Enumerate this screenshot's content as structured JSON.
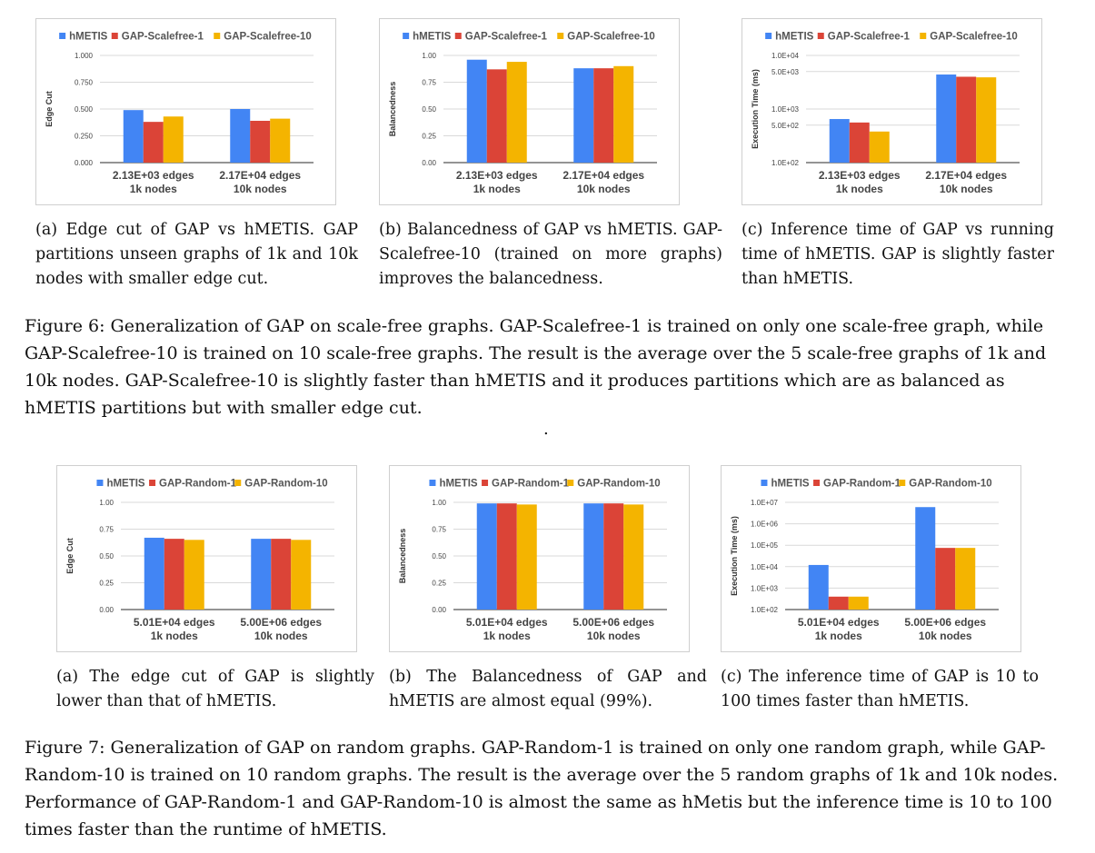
{
  "figure6": {
    "caption": "Figure 6: Generalization of GAP on scale-free graphs. GAP-Scalefree-1 is trained on only one scale-free graph, while GAP-Scalefree-10 is trained on 10 scale-free graphs. The result is the average over the 5 scale-free graphs of 1k and 10k nodes. GAP-Scalefree-10 is slightly faster than hMETIS and it produces partitions which are as balanced as hMETIS partitions but with smaller edge cut.",
    "subcaptions": [
      "(a) Edge cut of GAP vs hMETIS. GAP partitions unseen graphs of 1k and 10k nodes with smaller edge cut.",
      "(b) Balancedness of GAP vs hMETIS. GAP-Scalefree-10 (trained on more graphs) improves the balancedness.",
      "(c) Inference time of GAP vs running time of hMETIS. GAP is slightly faster than hMETIS."
    ]
  },
  "separator": ".",
  "figure7": {
    "caption": "Figure 7: Generalization of GAP on random graphs. GAP-Random-1 is trained on only one random graph, while GAP-Random-10 is trained on 10 random graphs. The result is the average over the 5 random graphs of 1k and 10k nodes. Performance of GAP-Random-1 and GAP-Random-10 is almost the same as hMetis but the inference time is 10 to 100 times faster than the runtime of hMETIS.",
    "subcaptions": [
      "(a) The edge cut of GAP is slightly lower than that of hMETIS.",
      "(b) The Balancedness of GAP and hMETIS are almost equal (99%).",
      "(c) The inference time of GAP is 10 to 100 times faster than hMETIS."
    ]
  },
  "colors": {
    "s0": "#4285f4",
    "s1": "#db4437",
    "s2": "#f4b400",
    "grid": "#d9d9d9",
    "axis": "#555555",
    "text": "#444444"
  },
  "chart_data": [
    {
      "id": "6a",
      "type": "bar",
      "ylabel": "Edge Cut",
      "scale": "linear",
      "ylim": [
        0,
        1
      ],
      "ticks": [
        0,
        0.25,
        0.5,
        0.75,
        1
      ],
      "tick_labels": [
        "0.000",
        "0.250",
        "0.500",
        "0.750",
        "1.000"
      ],
      "categories": [
        [
          "2.13E+03 edges",
          "1k nodes"
        ],
        [
          "2.17E+04 edges",
          "10k nodes"
        ]
      ],
      "series": [
        {
          "name": "hMETIS",
          "values": [
            0.49,
            0.5
          ]
        },
        {
          "name": "GAP-Scalefree-1",
          "values": [
            0.38,
            0.39
          ]
        },
        {
          "name": "GAP-Scalefree-10",
          "values": [
            0.43,
            0.41
          ]
        }
      ]
    },
    {
      "id": "6b",
      "type": "bar",
      "ylabel": "Balancedness",
      "scale": "linear",
      "ylim": [
        0,
        1
      ],
      "ticks": [
        0,
        0.25,
        0.5,
        0.75,
        1
      ],
      "tick_labels": [
        "0.00",
        "0.25",
        "0.50",
        "0.75",
        "1.00"
      ],
      "categories": [
        [
          "2.13E+03 edges",
          "1k nodes"
        ],
        [
          "2.17E+04 edges",
          "10k nodes"
        ]
      ],
      "series": [
        {
          "name": "hMETIS",
          "values": [
            0.96,
            0.88
          ]
        },
        {
          "name": "GAP-Scalefree-1",
          "values": [
            0.87,
            0.88
          ]
        },
        {
          "name": "GAP-Scalefree-10",
          "values": [
            0.94,
            0.9
          ]
        }
      ]
    },
    {
      "id": "6c",
      "type": "bar",
      "ylabel": "Execution Time (ms)",
      "scale": "log",
      "ylim": [
        100,
        10000
      ],
      "ticks": [
        100,
        500,
        1000,
        5000,
        10000
      ],
      "tick_labels": [
        "1.0E+02",
        "5.0E+02",
        "1.0E+03",
        "5.0E+03",
        "1.0E+04"
      ],
      "categories": [
        [
          "2.13E+03 edges",
          "1k nodes"
        ],
        [
          "2.17E+04 edges",
          "10k nodes"
        ]
      ],
      "series": [
        {
          "name": "hMETIS",
          "values": [
            650,
            4400
          ]
        },
        {
          "name": "GAP-Scalefree-1",
          "values": [
            560,
            4000
          ]
        },
        {
          "name": "GAP-Scalefree-10",
          "values": [
            380,
            3900
          ]
        }
      ]
    },
    {
      "id": "7a",
      "type": "bar",
      "ylabel": "Edge Cut",
      "scale": "linear",
      "ylim": [
        0,
        1
      ],
      "ticks": [
        0,
        0.25,
        0.5,
        0.75,
        1
      ],
      "tick_labels": [
        "0.00",
        "0.25",
        "0.50",
        "0.75",
        "1.00"
      ],
      "categories": [
        [
          "5.01E+04 edges",
          "1k nodes"
        ],
        [
          "5.00E+06 edges",
          "10k nodes"
        ]
      ],
      "series": [
        {
          "name": "hMETIS",
          "values": [
            0.67,
            0.66
          ]
        },
        {
          "name": "GAP-Random-1",
          "values": [
            0.66,
            0.66
          ]
        },
        {
          "name": "GAP-Random-10",
          "values": [
            0.65,
            0.65
          ]
        }
      ]
    },
    {
      "id": "7b",
      "type": "bar",
      "ylabel": "Balancedness",
      "scale": "linear",
      "ylim": [
        0,
        1
      ],
      "ticks": [
        0,
        0.25,
        0.5,
        0.75,
        1
      ],
      "tick_labels": [
        "0.00",
        "0.25",
        "0.50",
        "0.75",
        "1.00"
      ],
      "categories": [
        [
          "5.01E+04 edges",
          "1k nodes"
        ],
        [
          "5.00E+06 edges",
          "10k nodes"
        ]
      ],
      "series": [
        {
          "name": "hMETIS",
          "values": [
            0.99,
            0.99
          ]
        },
        {
          "name": "GAP-Random-1",
          "values": [
            0.99,
            0.99
          ]
        },
        {
          "name": "GAP-Random-10",
          "values": [
            0.98,
            0.98
          ]
        }
      ]
    },
    {
      "id": "7c",
      "type": "bar",
      "ylabel": "Execution Time (ms)",
      "scale": "log",
      "ylim": [
        100,
        10000000
      ],
      "ticks": [
        100,
        1000,
        10000,
        100000,
        1000000,
        10000000
      ],
      "tick_labels": [
        "1.0E+02",
        "1.0E+03",
        "1.0E+04",
        "1.0E+05",
        "1.0E+06",
        "1.0E+07"
      ],
      "categories": [
        [
          "5.01E+04 edges",
          "1k nodes"
        ],
        [
          "5.00E+06 edges",
          "10k nodes"
        ]
      ],
      "series": [
        {
          "name": "hMETIS",
          "values": [
            12000,
            6000000
          ]
        },
        {
          "name": "GAP-Random-1",
          "values": [
            400,
            75000
          ]
        },
        {
          "name": "GAP-Random-10",
          "values": [
            400,
            75000
          ]
        }
      ]
    }
  ]
}
